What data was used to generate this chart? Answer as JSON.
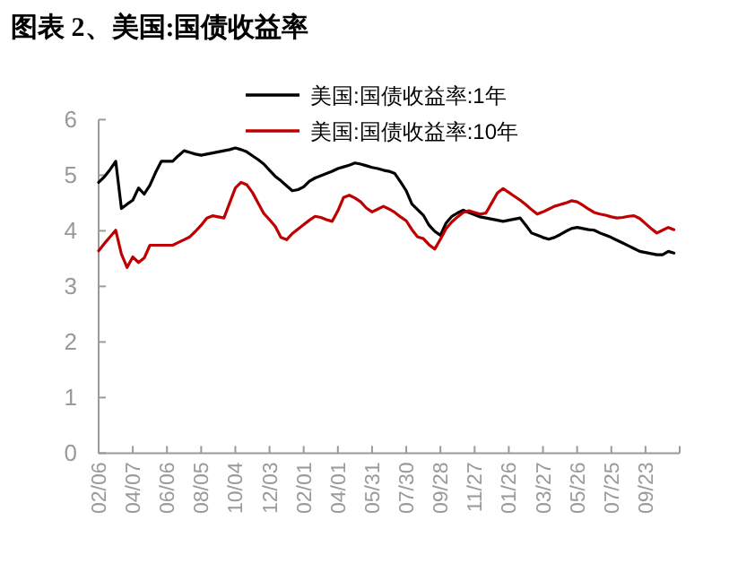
{
  "chart_data": {
    "type": "line",
    "title": "图表 2、美国:国债收益率",
    "categories": [
      "02/06",
      null,
      null,
      null,
      null,
      null,
      "04/07",
      null,
      null,
      null,
      null,
      null,
      "06/06",
      null,
      null,
      null,
      null,
      null,
      "08/05",
      null,
      null,
      null,
      null,
      null,
      "10/04",
      null,
      null,
      null,
      null,
      null,
      "12/03",
      null,
      null,
      null,
      null,
      null,
      "02/01",
      null,
      null,
      null,
      null,
      null,
      "04/01",
      null,
      null,
      null,
      null,
      null,
      "05/31",
      null,
      null,
      null,
      null,
      null,
      "07/30",
      null,
      null,
      null,
      null,
      null,
      "09/28",
      null,
      null,
      null,
      null,
      null,
      "11/27",
      null,
      null,
      null,
      null,
      null,
      "01/26",
      null,
      null,
      null,
      null,
      null,
      "03/27",
      null,
      null,
      null,
      null,
      null,
      "05/26",
      null,
      null,
      null,
      null,
      null,
      "07/25",
      null,
      null,
      null,
      null,
      null,
      "09/23",
      null,
      null,
      null,
      null,
      null,
      null
    ],
    "ylim": [
      0,
      6
    ],
    "yticks": [
      0,
      1,
      2,
      3,
      4,
      5,
      6
    ],
    "grid": false,
    "legend": "top",
    "line_style": "solid",
    "marker": "none",
    "series": [
      {
        "name": "美国:国债收益率:1年",
        "color": "#000000",
        "values": [
          4.87,
          4.97,
          5.1,
          5.25,
          4.4,
          4.48,
          4.55,
          4.77,
          4.66,
          4.82,
          5.05,
          5.25,
          5.25,
          5.25,
          5.35,
          5.44,
          5.41,
          5.38,
          5.36,
          5.38,
          5.4,
          5.42,
          5.44,
          5.46,
          5.49,
          5.46,
          5.42,
          5.35,
          5.28,
          5.2,
          5.09,
          4.98,
          4.9,
          4.81,
          4.72,
          4.74,
          4.79,
          4.89,
          4.95,
          4.99,
          5.03,
          5.07,
          5.12,
          5.15,
          5.18,
          5.22,
          5.2,
          5.17,
          5.14,
          5.12,
          5.09,
          5.07,
          5.03,
          4.88,
          4.72,
          4.48,
          4.38,
          4.28,
          4.1,
          3.99,
          3.92,
          4.14,
          4.26,
          4.32,
          4.37,
          4.33,
          4.29,
          4.25,
          4.23,
          4.21,
          4.19,
          4.17,
          4.19,
          4.21,
          4.23,
          4.1,
          3.96,
          3.92,
          3.88,
          3.85,
          3.88,
          3.93,
          3.99,
          4.04,
          4.06,
          4.04,
          4.02,
          4.01,
          3.96,
          3.92,
          3.88,
          3.83,
          3.78,
          3.73,
          3.68,
          3.63,
          3.61,
          3.59,
          3.57,
          3.57,
          3.63,
          3.6,
          null
        ]
      },
      {
        "name": "美国:国债收益率:10年",
        "color": "#c00000",
        "values": [
          3.64,
          3.77,
          3.89,
          4.01,
          3.58,
          3.34,
          3.53,
          3.43,
          3.51,
          3.74,
          3.74,
          3.74,
          3.74,
          3.74,
          3.79,
          3.84,
          3.89,
          3.99,
          4.1,
          4.23,
          4.27,
          4.25,
          4.23,
          4.5,
          4.77,
          4.87,
          4.83,
          4.69,
          4.5,
          4.31,
          4.2,
          4.08,
          3.88,
          3.84,
          3.95,
          4.03,
          4.11,
          4.19,
          4.26,
          4.24,
          4.2,
          4.17,
          4.36,
          4.6,
          4.64,
          4.59,
          4.52,
          4.41,
          4.34,
          4.39,
          4.44,
          4.39,
          4.33,
          4.25,
          4.18,
          4.02,
          3.89,
          3.86,
          3.75,
          3.67,
          3.85,
          4.04,
          4.16,
          4.25,
          4.33,
          4.36,
          4.33,
          4.3,
          4.32,
          4.5,
          4.68,
          4.76,
          4.69,
          4.62,
          4.55,
          4.47,
          4.38,
          4.3,
          4.34,
          4.39,
          4.44,
          4.47,
          4.5,
          4.54,
          4.52,
          4.46,
          4.39,
          4.33,
          4.3,
          4.28,
          4.25,
          4.23,
          4.24,
          4.26,
          4.27,
          4.22,
          4.13,
          4.04,
          3.96,
          4.01,
          4.06,
          4.02,
          null
        ]
      }
    ]
  }
}
